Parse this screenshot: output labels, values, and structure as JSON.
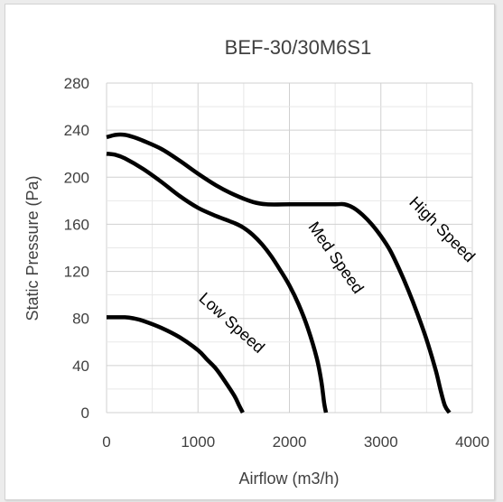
{
  "chart_data": {
    "type": "line",
    "title": "BEF-30/30M6S1",
    "xlabel": "Airflow (m3/h)",
    "ylabel": "Static Pressure (Pa)",
    "xlim": [
      0,
      4000
    ],
    "ylim": [
      0,
      280
    ],
    "x_ticks": [
      "0",
      "1000",
      "2000",
      "3000",
      "4000"
    ],
    "y_ticks": [
      "0",
      "40",
      "80",
      "120",
      "160",
      "200",
      "240",
      "280"
    ],
    "grid": true,
    "legend": "none",
    "line_color": "#000000",
    "grid_color": "#d9d9d9",
    "series": [
      {
        "name": "High Speed",
        "points": [
          [
            0,
            234
          ],
          [
            100,
            236
          ],
          [
            200,
            236
          ],
          [
            300,
            234
          ],
          [
            400,
            231
          ],
          [
            600,
            224
          ],
          [
            800,
            214
          ],
          [
            1000,
            203
          ],
          [
            1200,
            193
          ],
          [
            1400,
            185
          ],
          [
            1600,
            179
          ],
          [
            1750,
            177
          ],
          [
            2000,
            177
          ],
          [
            2200,
            177
          ],
          [
            2500,
            177
          ],
          [
            2600,
            177
          ],
          [
            2700,
            174
          ],
          [
            2800,
            168
          ],
          [
            2900,
            160
          ],
          [
            3000,
            150
          ],
          [
            3100,
            138
          ],
          [
            3200,
            122
          ],
          [
            3300,
            104
          ],
          [
            3400,
            84
          ],
          [
            3500,
            62
          ],
          [
            3600,
            36
          ],
          [
            3650,
            20
          ],
          [
            3700,
            6
          ],
          [
            3750,
            0
          ]
        ]
      },
      {
        "name": "Med Speed",
        "points": [
          [
            0,
            220
          ],
          [
            100,
            219
          ],
          [
            200,
            216
          ],
          [
            400,
            207
          ],
          [
            600,
            196
          ],
          [
            800,
            184
          ],
          [
            1000,
            174
          ],
          [
            1200,
            167
          ],
          [
            1400,
            161
          ],
          [
            1500,
            157
          ],
          [
            1600,
            151
          ],
          [
            1700,
            143
          ],
          [
            1800,
            133
          ],
          [
            1900,
            121
          ],
          [
            2000,
            108
          ],
          [
            2100,
            92
          ],
          [
            2200,
            72
          ],
          [
            2300,
            46
          ],
          [
            2350,
            26
          ],
          [
            2380,
            8
          ],
          [
            2400,
            0
          ]
        ]
      },
      {
        "name": "Low Speed",
        "points": [
          [
            0,
            81
          ],
          [
            200,
            81
          ],
          [
            300,
            80
          ],
          [
            400,
            78
          ],
          [
            600,
            72
          ],
          [
            800,
            64
          ],
          [
            1000,
            53
          ],
          [
            1100,
            45
          ],
          [
            1200,
            37
          ],
          [
            1300,
            26
          ],
          [
            1400,
            14
          ],
          [
            1450,
            6
          ],
          [
            1490,
            0
          ]
        ]
      }
    ],
    "annotations": [
      {
        "text": "High Speed",
        "x": 3300,
        "y": 178,
        "angle": 45
      },
      {
        "text": "Med Speed",
        "x": 2200,
        "y": 158,
        "angle": 55
      },
      {
        "text": "Low Speed",
        "x": 1000,
        "y": 96,
        "angle": 42
      }
    ]
  }
}
